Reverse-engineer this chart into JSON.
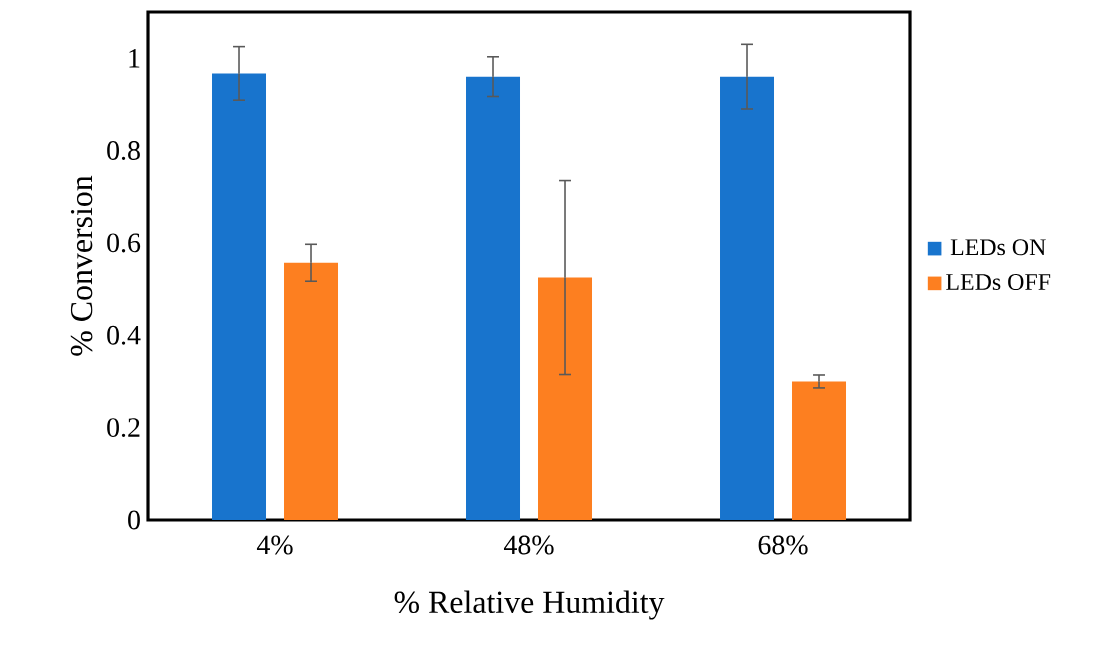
{
  "chart_data": {
    "type": "bar",
    "xlabel": "% Relative Humidity",
    "ylabel": "% Conversion",
    "categories": [
      "4%",
      "48%",
      "68%"
    ],
    "series": [
      {
        "name": "LEDs ON",
        "color": "#1874cd",
        "values": [
          0.967,
          0.96,
          0.96
        ],
        "errors": [
          0.058,
          0.043,
          0.07
        ]
      },
      {
        "name": "LEDs OFF",
        "color": "#fd7f20",
        "values": [
          0.557,
          0.525,
          0.3
        ],
        "errors": [
          0.04,
          0.21,
          0.014
        ]
      }
    ],
    "ylim": [
      0,
      1.1
    ],
    "yticks": [
      0,
      0.2,
      0.4,
      0.6,
      0.8,
      1
    ],
    "grid": false,
    "legend": "right"
  }
}
